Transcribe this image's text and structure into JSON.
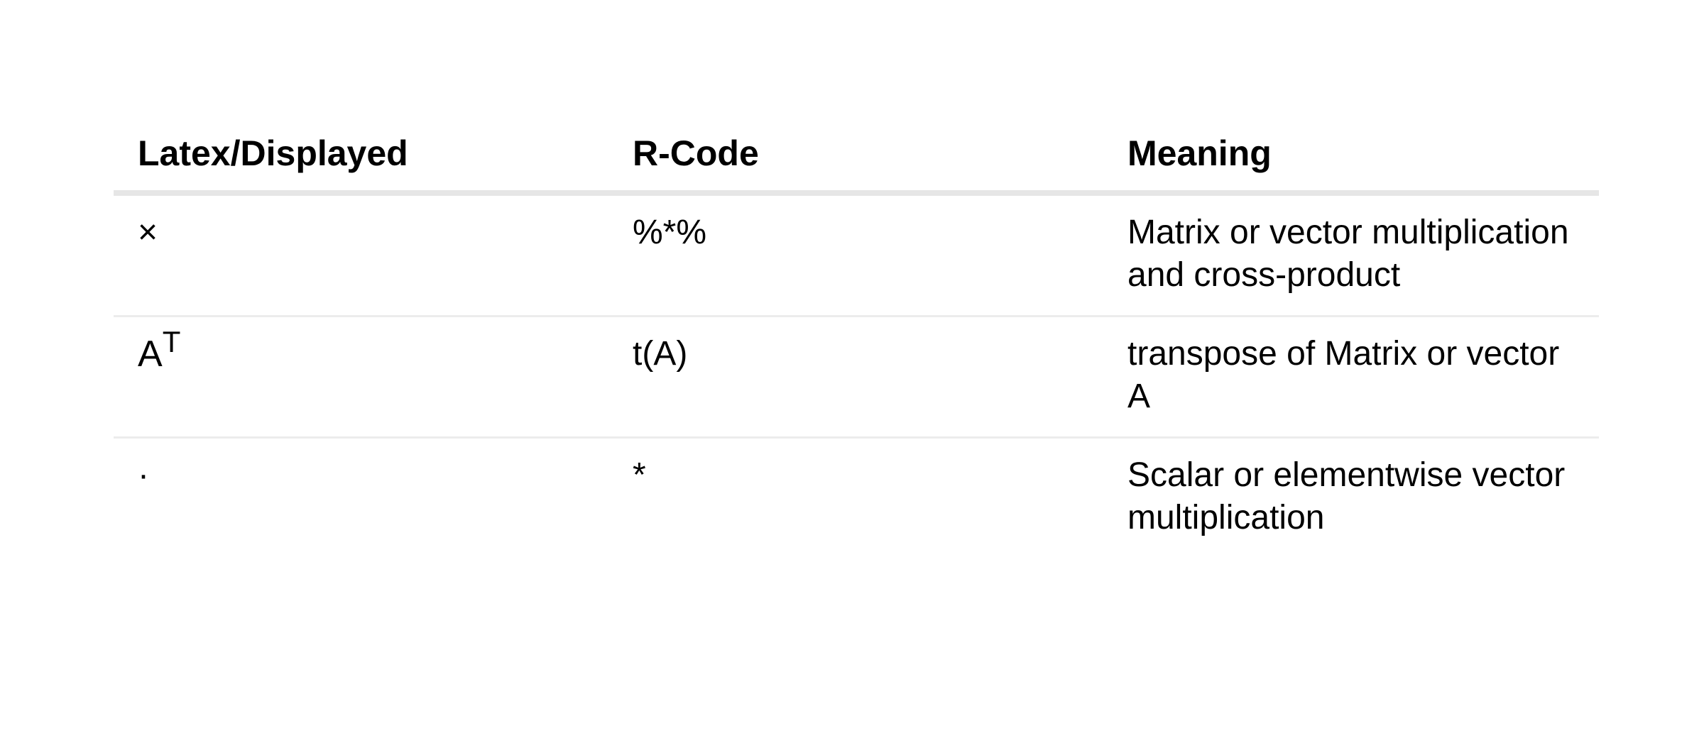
{
  "table": {
    "headers": [
      "Latex/Displayed",
      "R-Code",
      "Meaning"
    ],
    "rows": [
      {
        "displayed": "×",
        "r_code": "%*%",
        "meaning": "Matrix or vector multiplication and cross-product"
      },
      {
        "displayed_base": "A",
        "displayed_sup": "T",
        "r_code": "t(A)",
        "meaning": "transpose of Matrix or vector A"
      },
      {
        "displayed": "·",
        "r_code": "*",
        "meaning": "Scalar or elementwise vector multiplication"
      }
    ]
  }
}
